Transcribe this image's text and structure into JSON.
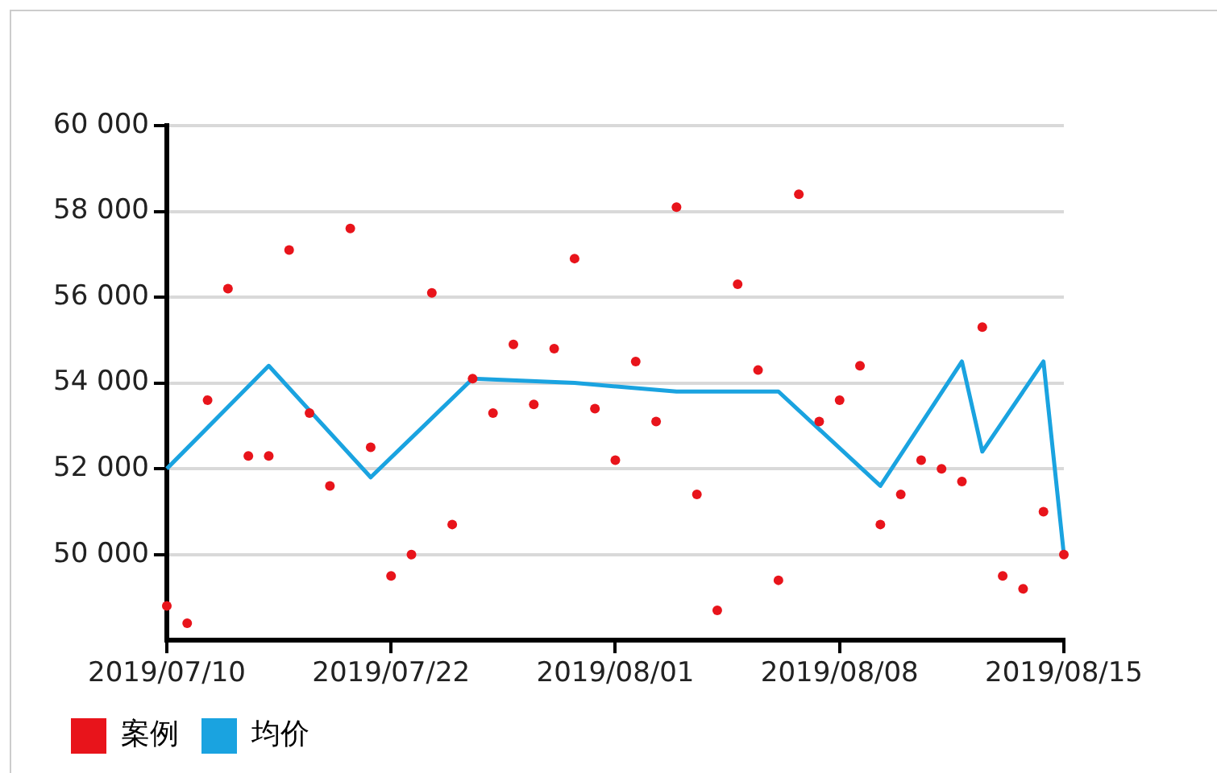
{
  "chart_data": {
    "type": "scatter",
    "categories": [
      "2019/07/10",
      null,
      null,
      null,
      null,
      null,
      null,
      null,
      null,
      null,
      null,
      "2019/07/22",
      null,
      null,
      null,
      null,
      null,
      null,
      null,
      null,
      null,
      null,
      "2019/08/01",
      null,
      null,
      null,
      null,
      null,
      null,
      null,
      null,
      null,
      null,
      "2019/08/08",
      null,
      null,
      null,
      null,
      null,
      null,
      null,
      null,
      null,
      null,
      "2019/08/15"
    ],
    "series": [
      {
        "name": "案例",
        "color": "#e8141b",
        "marker": "circle",
        "values": [
          48800,
          48400,
          53600,
          56200,
          52300,
          52300,
          57100,
          53300,
          51600,
          57600,
          52500,
          49500,
          50000,
          56100,
          50700,
          54100,
          53300,
          54900,
          53500,
          54800,
          56900,
          53400,
          52200,
          54500,
          53100,
          58100,
          51400,
          48700,
          56300,
          54300,
          49400,
          58400,
          53100,
          53600,
          54400,
          50700,
          51400,
          52200,
          52000,
          51700,
          55300,
          49500,
          49200,
          51000,
          50000
        ]
      },
      {
        "name": "均价",
        "type": "line",
        "color": "#1aa3e0",
        "marker": "none",
        "values": [
          52000,
          null,
          null,
          null,
          null,
          54400,
          null,
          null,
          null,
          null,
          51800,
          null,
          null,
          null,
          null,
          54100,
          null,
          null,
          null,
          null,
          54000,
          null,
          null,
          null,
          null,
          53800,
          null,
          null,
          null,
          null,
          53800,
          null,
          null,
          null,
          null,
          51600,
          null,
          null,
          null,
          54500,
          52400,
          null,
          null,
          54500,
          50000
        ]
      }
    ],
    "ylim": [
      48000,
      60000
    ],
    "yticks": [
      {
        "value": 50000,
        "label": "50 000"
      },
      {
        "value": 52000,
        "label": "52 000"
      },
      {
        "value": 54000,
        "label": "54 000"
      },
      {
        "value": 56000,
        "label": "56 000"
      },
      {
        "value": 58000,
        "label": "58 000"
      },
      {
        "value": 60000,
        "label": "60 000"
      }
    ],
    "grid": "y",
    "legend": "bottom left"
  }
}
